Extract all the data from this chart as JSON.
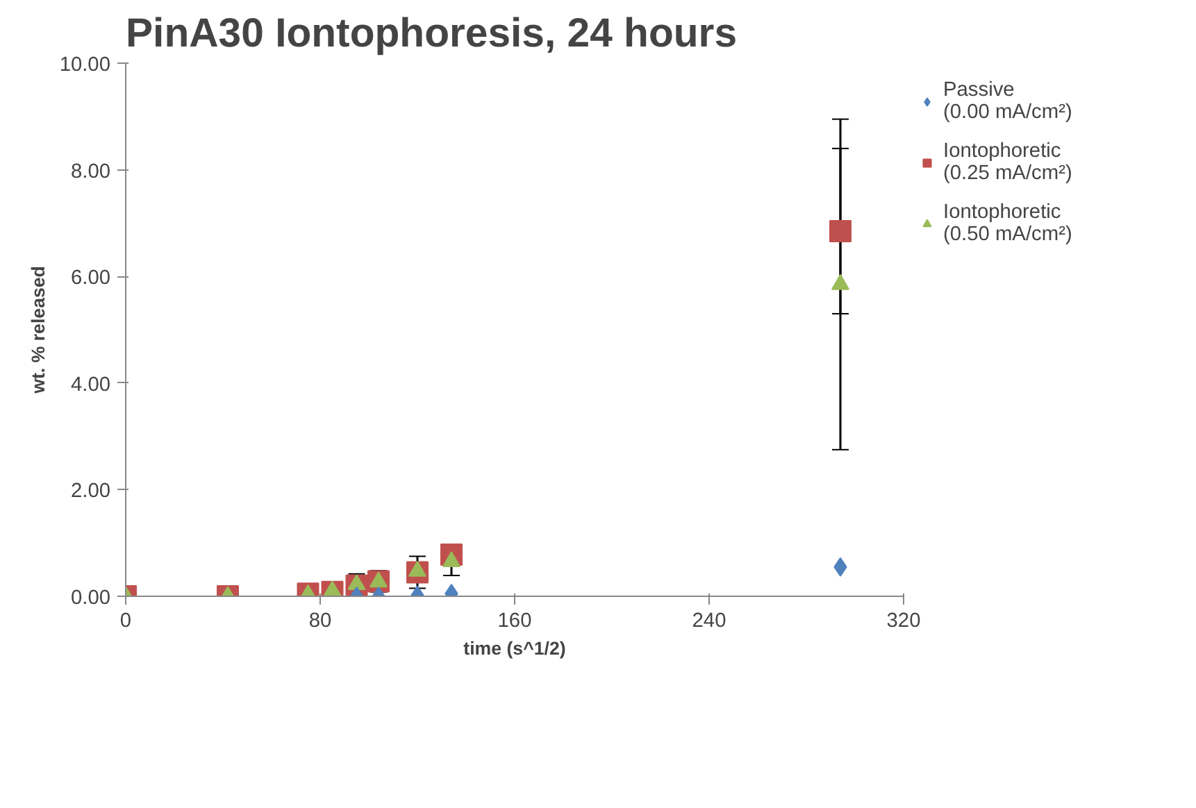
{
  "chart_data": {
    "type": "scatter",
    "title": "PinA30 Iontophoresis, 24 hours",
    "xlabel": "time (s^1/2)",
    "ylabel": "wt. % released",
    "x": [
      0,
      42,
      75,
      85,
      95,
      104,
      120,
      134,
      294
    ],
    "series": [
      {
        "name": "Passive (0.00 mA/cm²)",
        "color": "#4f81bd",
        "marker": "diamond",
        "values": [
          null,
          null,
          null,
          null,
          0,
          0,
          0.02,
          0.05,
          0.55
        ]
      },
      {
        "name": "Iontophoretic (0.25 mA/cm²)",
        "color": "#c0504d",
        "marker": "square",
        "values": [
          0,
          0,
          0.05,
          0.08,
          0.2,
          0.28,
          0.45,
          0.78,
          6.85
        ],
        "errors": [
          null,
          null,
          null,
          null,
          null,
          0.2,
          0.3,
          null,
          1.55
        ]
      },
      {
        "name": "Iontophoretic (0.50 mA/cm²)",
        "color": "#9bbb59",
        "marker": "triangle",
        "values": [
          0,
          0,
          0.03,
          0.1,
          0.22,
          0.27,
          0.47,
          0.65,
          5.85
        ],
        "errors": [
          null,
          null,
          null,
          null,
          0.2,
          null,
          null,
          0.26,
          3.1
        ]
      }
    ],
    "xlim": [
      0,
      320
    ],
    "xticks": [
      0,
      80,
      160,
      240,
      320
    ],
    "ylim": [
      0,
      10
    ],
    "yticks": [
      {
        "value": 0,
        "label": "0.00"
      },
      {
        "value": 2,
        "label": "2.00"
      },
      {
        "value": 4,
        "label": "4.00"
      },
      {
        "value": 6,
        "label": "6.00"
      },
      {
        "value": 8,
        "label": "8.00"
      },
      {
        "value": 10,
        "label": "10.00"
      }
    ],
    "grid": false,
    "legend": "top right"
  }
}
